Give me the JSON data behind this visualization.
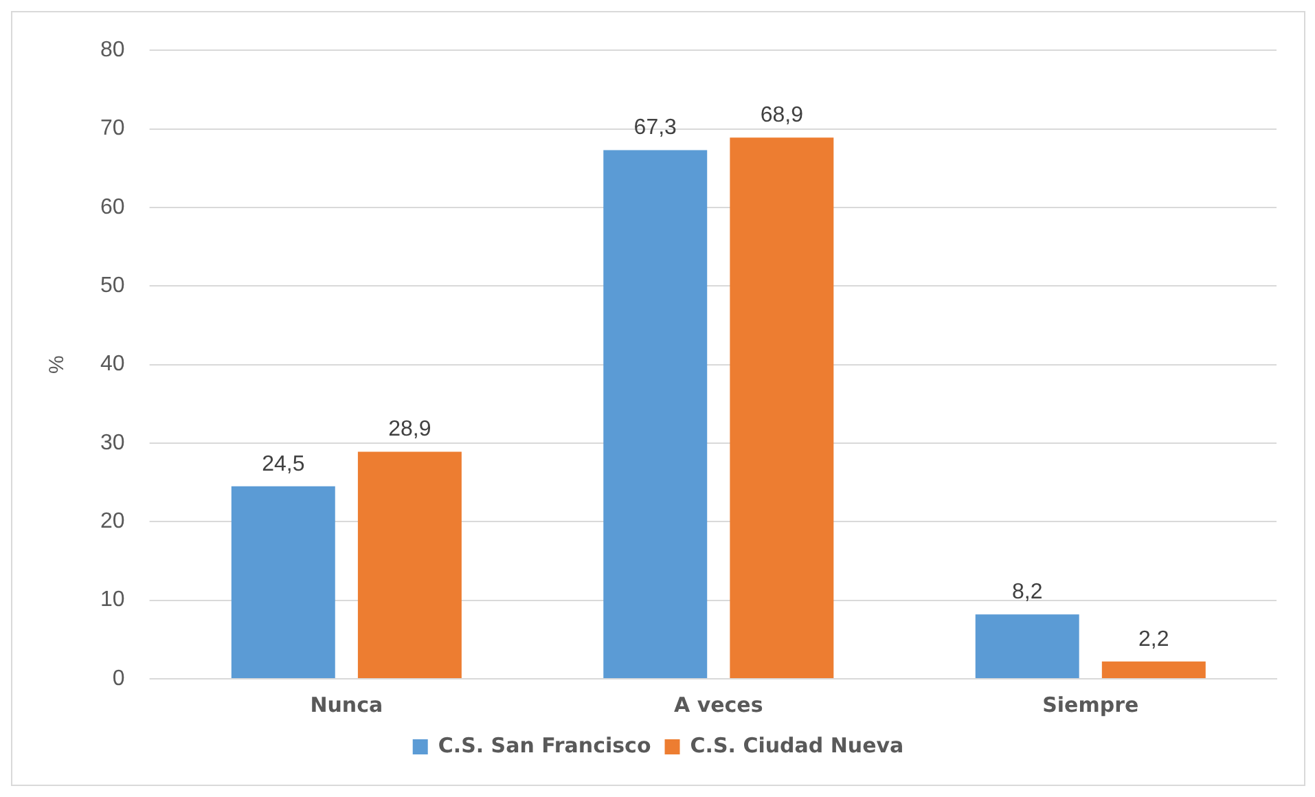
{
  "chart_data": {
    "type": "bar",
    "ylabel": "%",
    "categories": [
      "Nunca",
      "A veces",
      "Siempre"
    ],
    "series": [
      {
        "name": "C.S. San Francisco",
        "color": "#5b9bd5",
        "values": [
          24.5,
          67.3,
          8.2
        ],
        "value_labels": [
          "24,5",
          "67,3",
          "8,2"
        ]
      },
      {
        "name": "C.S. Ciudad Nueva",
        "color": "#ed7d31",
        "values": [
          28.9,
          68.9,
          2.2
        ],
        "value_labels": [
          "28,9",
          "68,9",
          "2,2"
        ]
      }
    ],
    "ylim": [
      0,
      80
    ],
    "yticks": [
      0,
      10,
      20,
      30,
      40,
      50,
      60,
      70,
      80
    ],
    "grid": "y",
    "legend": "bottom"
  }
}
